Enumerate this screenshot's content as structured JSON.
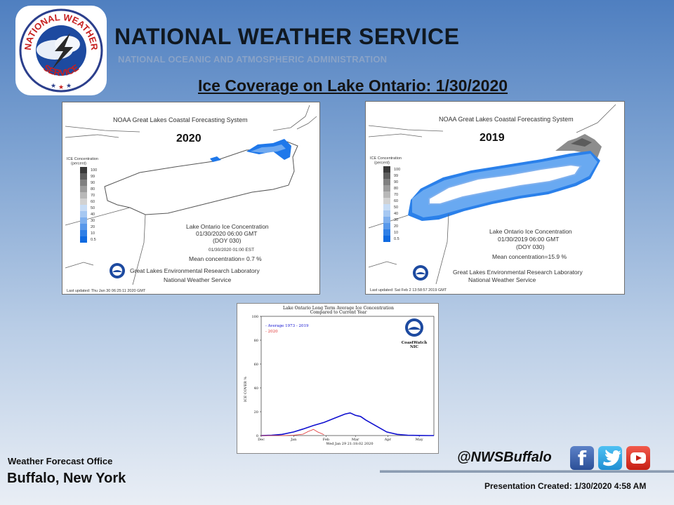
{
  "header": {
    "agency": "NATIONAL WEATHER SERVICE",
    "parent_agency": "NATIONAL OCEANIC AND ATMOSPHERIC ADMINISTRATION",
    "slide_title": "Ice Coverage on Lake Ontario: 1/30/2020"
  },
  "logo": {
    "ring_text_top": "NATIONAL WEATHER",
    "ring_text_bottom": "SERVICE"
  },
  "maps": [
    {
      "year_label": "2020",
      "system": "NOAA Great Lakes Coastal Forecasting System",
      "product": "Lake Ontario Ice Concentration",
      "valid": "01/30/2020 06:00 GMT",
      "doy": "(DOY 030)",
      "local_time": "01/30/2020 01:00 EST",
      "mean": "Mean concentration= 0.7 %",
      "lab": "Great Lakes Environmental Research Laboratory",
      "nws": "National Weather Service",
      "updated": "Last updated: Thu Jan 30 06:25:11 2020 GMT"
    },
    {
      "year_label": "2019",
      "system": "NOAA Great Lakes Coastal Forecasting System",
      "product": "Lake Ontario Ice Concentration",
      "valid": "01/30/2019 06:00 GMT",
      "doy": "(DOY 030)",
      "local_time": "",
      "mean": "Mean concentration=15.9 %",
      "lab": "Great Lakes Environmental Research Laboratory",
      "nws": "National Weather Service",
      "updated": "Last updated: Sat Feb  2 13:58:57 2019 GMT"
    }
  ],
  "legend": {
    "title_line1": "ICE Concentration",
    "title_line2": "(percent)",
    "levels": [
      "100",
      "99",
      "90",
      "80",
      "70",
      "60",
      "50",
      "40",
      "30",
      "20",
      "10",
      "0.5"
    ],
    "colors": [
      "#3a3a3a",
      "#5e5e5e",
      "#808080",
      "#9c9c9c",
      "#b8b8b8",
      "#d2d2d2",
      "#c7dcf5",
      "#a6c8f2",
      "#7fb0ee",
      "#5898ea",
      "#2f7fe6",
      "#0f6ae0"
    ]
  },
  "chart_data": {
    "type": "line",
    "title": "Lake Ontario Long Term Average Ice Concentration",
    "subtitle": "Compared to Current Year",
    "xlabel": "Wed Jan 29 21:18:02 2020",
    "ylabel": "ICE COVER %",
    "badge": "CoastWatch",
    "badge_sub": "NIC",
    "ylim": [
      0,
      100
    ],
    "yticks": [
      0,
      20,
      40,
      60,
      80,
      100
    ],
    "xlim": [
      0,
      165
    ],
    "xticks": [
      {
        "label": "Dec",
        "day": 0
      },
      {
        "label": "Jan",
        "day": 31
      },
      {
        "label": "Feb",
        "day": 62
      },
      {
        "label": "Mar",
        "day": 90
      },
      {
        "label": "Apr",
        "day": 121
      },
      {
        "label": "May",
        "day": 151
      }
    ],
    "series": [
      {
        "name": "Average 1973 - 2019",
        "label": "- Average 1973 - 2019",
        "color": "#1010d0",
        "x": [
          0,
          10,
          20,
          31,
          40,
          50,
          60,
          70,
          80,
          85,
          90,
          95,
          100,
          110,
          120,
          130,
          140,
          150,
          160,
          165
        ],
        "y": [
          0,
          0.3,
          1,
          3,
          5.5,
          8.5,
          11,
          14.5,
          18,
          19,
          17,
          16,
          13,
          8,
          3,
          1,
          0.3,
          0.1,
          0,
          0
        ]
      },
      {
        "name": "2020",
        "label": "- 2020",
        "color": "#e03030",
        "x": [
          0,
          20,
          31,
          40,
          45,
          50,
          54,
          58,
          60
        ],
        "y": [
          0,
          0,
          0.3,
          1.2,
          3.5,
          5.2,
          3,
          1.5,
          0.7
        ]
      }
    ]
  },
  "footer": {
    "office_label": "Weather Forecast Office",
    "city": "Buffalo, New York",
    "twitter_handle": "@NWSBuffalo",
    "created": "Presentation Created: 1/30/2020 4:58 AM"
  },
  "social": [
    {
      "name": "facebook-icon",
      "glyph": "f"
    },
    {
      "name": "twitter-icon",
      "glyph": ""
    },
    {
      "name": "youtube-icon",
      "glyph": ""
    }
  ]
}
